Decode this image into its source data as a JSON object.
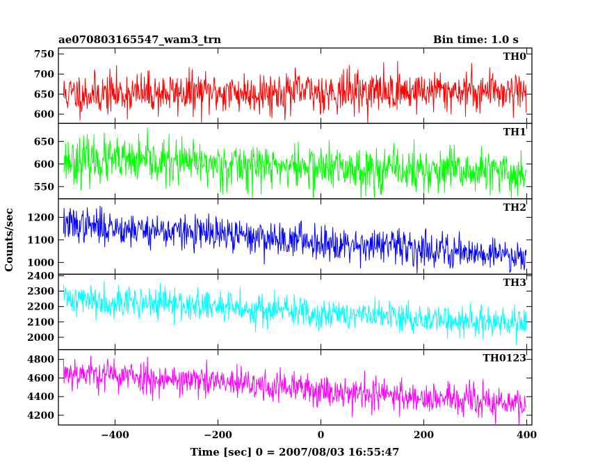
{
  "header": {
    "object_name": "ae070803165547_wam3_trn",
    "bin_time": "Bin time: 1.0 s"
  },
  "chart_data": {
    "type": "line",
    "title": "ae070803165547_wam3_trn",
    "subtitle": "Bin time: 1.0 s",
    "xlabel": "Time [sec] 0 = 2007/08/03 16:55:47",
    "ylabel": "Counts/sec",
    "xlim": [
      -510,
      410
    ],
    "x_ticks": [
      -400,
      -200,
      0,
      200,
      400
    ],
    "x_tick_labels": [
      "−400",
      "−200",
      "0",
      "200",
      "400"
    ],
    "x_range": [
      -500,
      399
    ],
    "bin_time_s": 1.0,
    "grid": false,
    "legend": "none",
    "panels": [
      {
        "name": "TH0",
        "color": "#ff0000",
        "ylim": [
          577,
          765
        ],
        "yticks": [
          600,
          650,
          700,
          750
        ],
        "trend_start": 650,
        "trend_end": 660,
        "noise_sigma": 26,
        "seed": 11
      },
      {
        "name": "TH1",
        "color": "#00ff00",
        "ylim": [
          523,
          690
        ],
        "yticks": [
          550,
          600,
          650
        ],
        "trend_start": 610,
        "trend_end": 578,
        "noise_sigma": 25,
        "seed": 23
      },
      {
        "name": "TH2",
        "color": "#0000ff",
        "ylim": [
          948,
          1282
        ],
        "yticks": [
          1000,
          1100,
          1200
        ],
        "trend_start": 1170,
        "trend_end": 1030,
        "noise_sigma": 38,
        "seed": 37
      },
      {
        "name": "TH3",
        "color": "#00ffff",
        "ylim": [
          1920,
          2410
        ],
        "yticks": [
          2000,
          2100,
          2200,
          2300,
          2400
        ],
        "trend_start": 2255,
        "trend_end": 2080,
        "noise_sigma": 52,
        "seed": 41
      },
      {
        "name": "TH0123",
        "color": "#ff00ff",
        "ylim": [
          4095,
          4905
        ],
        "yticks": [
          4200,
          4400,
          4600,
          4800
        ],
        "trend_start": 4670,
        "trend_end": 4310,
        "noise_sigma": 88,
        "seed": 53
      }
    ]
  }
}
